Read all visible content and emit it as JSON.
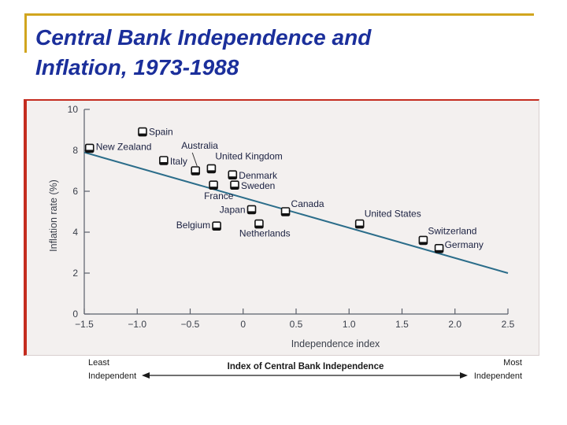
{
  "slide": {
    "title_line1": "Central Bank Independence and",
    "title_line2": "Inflation, 1973-1988"
  },
  "chart_data": {
    "type": "scatter",
    "xlabel": "Independence index",
    "ylabel": "Inflation rate (%)",
    "xlim": [
      -1.5,
      2.5
    ],
    "ylim": [
      0,
      10
    ],
    "x_ticks": [
      -1.5,
      -1.0,
      -0.5,
      0,
      0.5,
      1.0,
      1.5,
      2.0,
      2.5
    ],
    "x_tick_labels": [
      "−1.5",
      "−1.0",
      "−0.5",
      "0",
      "0.5",
      "1.0",
      "1.5",
      "2.0",
      "2.5"
    ],
    "y_ticks": [
      0,
      2,
      4,
      6,
      8,
      10
    ],
    "y_tick_labels": [
      "0",
      "2",
      "4",
      "6",
      "8",
      "10"
    ],
    "grid": false,
    "points": [
      {
        "label": "Spain",
        "x": -0.95,
        "y": 8.9
      },
      {
        "label": "New Zealand",
        "x": -1.45,
        "y": 8.1
      },
      {
        "label": "Italy",
        "x": -0.75,
        "y": 7.5
      },
      {
        "label": "Australia",
        "x": -0.45,
        "y": 7.0
      },
      {
        "label": "United Kingdom",
        "x": -0.3,
        "y": 7.1
      },
      {
        "label": "Denmark",
        "x": -0.1,
        "y": 6.8
      },
      {
        "label": "France",
        "x": -0.28,
        "y": 6.3
      },
      {
        "label": "Sweden",
        "x": -0.08,
        "y": 6.3
      },
      {
        "label": "Japan",
        "x": 0.08,
        "y": 5.1
      },
      {
        "label": "Canada",
        "x": 0.4,
        "y": 5.0
      },
      {
        "label": "Belgium",
        "x": -0.25,
        "y": 4.3
      },
      {
        "label": "Netherlands",
        "x": 0.15,
        "y": 4.4
      },
      {
        "label": "United States",
        "x": 1.1,
        "y": 4.4
      },
      {
        "label": "Switzerland",
        "x": 1.7,
        "y": 3.6
      },
      {
        "label": "Germany",
        "x": 1.85,
        "y": 3.2
      }
    ],
    "trend_line": {
      "x": [
        -1.5,
        2.5
      ],
      "y": [
        7.9,
        2.0
      ]
    },
    "bottom_axis": {
      "left": [
        "Least",
        "Independent"
      ],
      "center": "Index of Central Bank Independence",
      "right": [
        "Most",
        "Independent"
      ]
    },
    "colors": {
      "trend": "#2b6d8a",
      "marker_fill": "#ffffff",
      "marker_stroke": "#111111",
      "axis": "#5a5f6a",
      "label": "#1a2040",
      "title": "#1b2f9b",
      "accent": "#d1a51e",
      "panel_border": "#c42c1f"
    }
  }
}
